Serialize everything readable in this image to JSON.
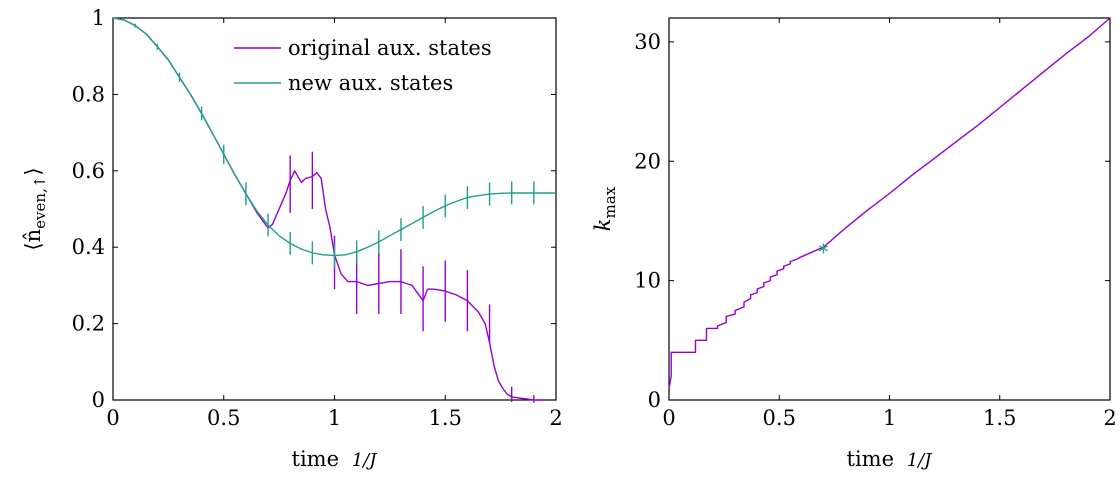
{
  "colors": {
    "purple": "#9400d3",
    "teal": "#1fa187"
  },
  "chart_data": [
    {
      "type": "line",
      "xlabel": "time",
      "xlabel_unit": "1/J",
      "ylabel": "⟨n̂",
      "ylabel_sub": "even,↑",
      "ylabel_close": "⟩",
      "xlim": [
        0,
        2
      ],
      "ylim": [
        0,
        1
      ],
      "xticks": [
        0,
        0.5,
        1,
        1.5,
        2
      ],
      "xtick_labels": [
        "0",
        "0.5",
        "1",
        "1.5",
        "2"
      ],
      "yticks": [
        0,
        0.2,
        0.4,
        0.6,
        0.8,
        1
      ],
      "ytick_labels": [
        "0",
        "0.2",
        "0.4",
        "0.6",
        "0.8",
        "1"
      ],
      "legend_position": "top-right",
      "series": [
        {
          "name": "original aux. states",
          "color": "purple",
          "x": [
            0,
            0.05,
            0.1,
            0.15,
            0.2,
            0.25,
            0.3,
            0.35,
            0.4,
            0.45,
            0.5,
            0.55,
            0.6,
            0.65,
            0.7,
            0.72,
            0.75,
            0.78,
            0.8,
            0.82,
            0.85,
            0.87,
            0.9,
            0.92,
            0.94,
            0.96,
            0.98,
            1.0,
            1.03,
            1.06,
            1.1,
            1.15,
            1.2,
            1.25,
            1.3,
            1.35,
            1.4,
            1.42,
            1.45,
            1.5,
            1.55,
            1.6,
            1.65,
            1.68,
            1.7,
            1.72,
            1.74,
            1.76,
            1.78,
            1.8,
            1.85,
            1.9,
            1.95
          ],
          "y": [
            1.0,
            0.995,
            0.98,
            0.958,
            0.925,
            0.89,
            0.845,
            0.8,
            0.75,
            0.697,
            0.643,
            0.59,
            0.54,
            0.49,
            0.45,
            0.46,
            0.5,
            0.54,
            0.575,
            0.6,
            0.57,
            0.58,
            0.585,
            0.595,
            0.58,
            0.5,
            0.45,
            0.38,
            0.33,
            0.31,
            0.31,
            0.3,
            0.305,
            0.31,
            0.31,
            0.3,
            0.26,
            0.29,
            0.29,
            0.285,
            0.275,
            0.26,
            0.23,
            0.2,
            0.15,
            0.09,
            0.05,
            0.03,
            0.015,
            0.008,
            0.004,
            0.0,
            0.0
          ],
          "errorbars": [
            {
              "x": 0.8,
              "y": 0.565,
              "err": 0.075
            },
            {
              "x": 0.9,
              "y": 0.575,
              "err": 0.075
            },
            {
              "x": 1.0,
              "y": 0.36,
              "err": 0.07
            },
            {
              "x": 1.1,
              "y": 0.305,
              "err": 0.08
            },
            {
              "x": 1.2,
              "y": 0.305,
              "err": 0.08
            },
            {
              "x": 1.3,
              "y": 0.31,
              "err": 0.085
            },
            {
              "x": 1.4,
              "y": 0.265,
              "err": 0.085
            },
            {
              "x": 1.5,
              "y": 0.285,
              "err": 0.08
            },
            {
              "x": 1.6,
              "y": 0.26,
              "err": 0.08
            },
            {
              "x": 1.7,
              "y": 0.2,
              "err": 0.05
            },
            {
              "x": 1.8,
              "y": 0.015,
              "err": 0.02
            },
            {
              "x": 1.9,
              "y": 0.003,
              "err": 0.01
            }
          ]
        },
        {
          "name": "new aux. states",
          "color": "teal",
          "x": [
            0,
            0.05,
            0.1,
            0.15,
            0.2,
            0.25,
            0.3,
            0.35,
            0.4,
            0.45,
            0.5,
            0.55,
            0.6,
            0.65,
            0.7,
            0.75,
            0.8,
            0.85,
            0.9,
            0.95,
            1.0,
            1.05,
            1.1,
            1.15,
            1.2,
            1.25,
            1.3,
            1.35,
            1.4,
            1.45,
            1.5,
            1.55,
            1.6,
            1.65,
            1.7,
            1.75,
            1.8,
            1.85,
            1.9,
            1.95,
            2.0
          ],
          "y": [
            1.0,
            0.995,
            0.98,
            0.958,
            0.925,
            0.89,
            0.845,
            0.8,
            0.75,
            0.697,
            0.643,
            0.59,
            0.54,
            0.494,
            0.458,
            0.43,
            0.41,
            0.395,
            0.385,
            0.38,
            0.378,
            0.38,
            0.388,
            0.4,
            0.414,
            0.43,
            0.446,
            0.462,
            0.478,
            0.494,
            0.508,
            0.52,
            0.53,
            0.535,
            0.539,
            0.541,
            0.542,
            0.542,
            0.542,
            0.542,
            0.542
          ],
          "errorbars": [
            {
              "x": 0.1,
              "y": 0.98,
              "err": 0.005
            },
            {
              "x": 0.2,
              "y": 0.925,
              "err": 0.008
            },
            {
              "x": 0.3,
              "y": 0.845,
              "err": 0.012
            },
            {
              "x": 0.4,
              "y": 0.75,
              "err": 0.018
            },
            {
              "x": 0.5,
              "y": 0.643,
              "err": 0.025
            },
            {
              "x": 0.6,
              "y": 0.54,
              "err": 0.03
            },
            {
              "x": 0.7,
              "y": 0.458,
              "err": 0.03
            },
            {
              "x": 0.8,
              "y": 0.41,
              "err": 0.03
            },
            {
              "x": 0.9,
              "y": 0.385,
              "err": 0.03
            },
            {
              "x": 1.0,
              "y": 0.378,
              "err": 0.03
            },
            {
              "x": 1.1,
              "y": 0.388,
              "err": 0.03
            },
            {
              "x": 1.2,
              "y": 0.414,
              "err": 0.03
            },
            {
              "x": 1.3,
              "y": 0.446,
              "err": 0.03
            },
            {
              "x": 1.4,
              "y": 0.478,
              "err": 0.03
            },
            {
              "x": 1.5,
              "y": 0.508,
              "err": 0.03
            },
            {
              "x": 1.6,
              "y": 0.53,
              "err": 0.03
            },
            {
              "x": 1.7,
              "y": 0.539,
              "err": 0.03
            },
            {
              "x": 1.8,
              "y": 0.542,
              "err": 0.03
            },
            {
              "x": 1.9,
              "y": 0.542,
              "err": 0.03
            }
          ]
        }
      ]
    },
    {
      "type": "line",
      "xlabel": "time",
      "xlabel_unit": "1/J",
      "ylabel": "k",
      "ylabel_sub": "max",
      "xlim": [
        0,
        2
      ],
      "ylim": [
        0,
        32
      ],
      "xticks": [
        0,
        0.5,
        1,
        1.5,
        2
      ],
      "xtick_labels": [
        "0",
        "0.5",
        "1",
        "1.5",
        "2"
      ],
      "yticks": [
        0,
        10,
        20,
        30
      ],
      "ytick_labels": [
        "0",
        "10",
        "20",
        "30"
      ],
      "series": [
        {
          "color": "purple",
          "x": [
            0,
            0.01,
            0.01,
            0.12,
            0.12,
            0.17,
            0.17,
            0.22,
            0.22,
            0.26,
            0.26,
            0.3,
            0.3,
            0.34,
            0.34,
            0.37,
            0.37,
            0.4,
            0.4,
            0.43,
            0.43,
            0.46,
            0.46,
            0.49,
            0.49,
            0.52,
            0.52,
            0.55,
            0.55,
            0.58,
            0.6,
            0.7,
            0.8,
            0.9,
            1.0,
            1.1,
            1.2,
            1.3,
            1.4,
            1.5,
            1.6,
            1.7,
            1.8,
            1.9,
            2.0
          ],
          "y": [
            1,
            2,
            4,
            4,
            5,
            5,
            6,
            6,
            6.2,
            6.5,
            7,
            7.2,
            7.5,
            7.8,
            8.2,
            8.5,
            8.8,
            9.0,
            9.3,
            9.5,
            9.8,
            10.0,
            10.3,
            10.5,
            10.8,
            11.0,
            11.2,
            11.4,
            11.6,
            11.8,
            12.0,
            12.8,
            14.4,
            15.9,
            17.3,
            18.8,
            20.2,
            21.6,
            23.0,
            24.5,
            26.0,
            27.5,
            29.0,
            30.4,
            32.0
          ]
        },
        {
          "color": "teal",
          "type": "marker",
          "marker": "asterisk",
          "x": [
            0.7
          ],
          "y": [
            12.7
          ]
        }
      ]
    }
  ]
}
